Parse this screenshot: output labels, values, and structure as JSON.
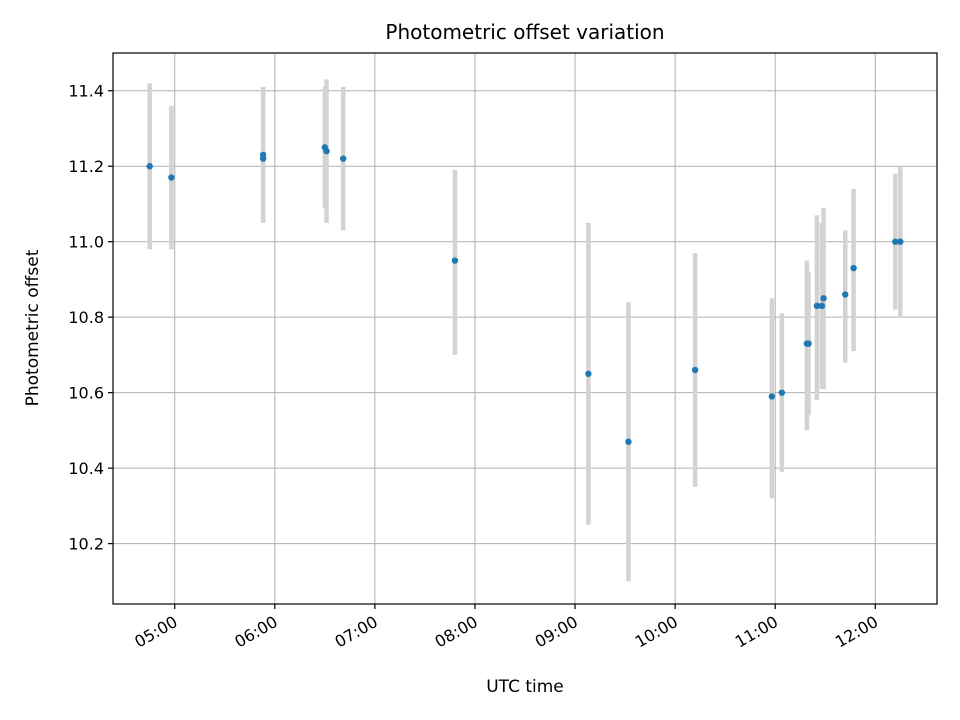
{
  "chart_data": {
    "type": "scatter",
    "title": "Photometric offset variation",
    "xlabel": "UTC time",
    "ylabel": "Photometric offset",
    "x_axis_kind": "time",
    "xlim": [
      "04:23",
      "12:37"
    ],
    "ylim": [
      10.04,
      11.5
    ],
    "grid": true,
    "x_ticks": [
      {
        "t": "05:00",
        "label": "05:00"
      },
      {
        "t": "06:00",
        "label": "06:00"
      },
      {
        "t": "07:00",
        "label": "07:00"
      },
      {
        "t": "08:00",
        "label": "08:00"
      },
      {
        "t": "09:00",
        "label": "09:00"
      },
      {
        "t": "10:00",
        "label": "10:00"
      },
      {
        "t": "11:00",
        "label": "11:00"
      },
      {
        "t": "12:00",
        "label": "12:00"
      }
    ],
    "y_ticks": [
      {
        "v": 10.2,
        "label": "10.2"
      },
      {
        "v": 10.4,
        "label": "10.4"
      },
      {
        "v": 10.6,
        "label": "10.6"
      },
      {
        "v": 10.8,
        "label": "10.8"
      },
      {
        "v": 11.0,
        "label": "11.0"
      },
      {
        "v": 11.2,
        "label": "11.2"
      },
      {
        "v": 11.4,
        "label": "11.4"
      }
    ],
    "colors": {
      "points": "#1f77b4",
      "errorbars": "#d3d3d3",
      "grid": "#b0b0b0"
    },
    "points": [
      {
        "t": "04:45",
        "y": 11.2,
        "lo": 10.98,
        "hi": 11.42
      },
      {
        "t": "04:58",
        "y": 11.17,
        "lo": 10.98,
        "hi": 11.36
      },
      {
        "t": "05:53",
        "y": 11.23,
        "lo": 11.05,
        "hi": 11.41
      },
      {
        "t": "05:53",
        "y": 11.22,
        "lo": 11.05,
        "hi": 11.4
      },
      {
        "t": "06:30",
        "y": 11.25,
        "lo": 11.09,
        "hi": 11.41
      },
      {
        "t": "06:31",
        "y": 11.24,
        "lo": 11.05,
        "hi": 11.43
      },
      {
        "t": "06:41",
        "y": 11.22,
        "lo": 11.03,
        "hi": 11.41
      },
      {
        "t": "07:48",
        "y": 10.95,
        "lo": 10.7,
        "hi": 11.19
      },
      {
        "t": "09:08",
        "y": 10.65,
        "lo": 10.25,
        "hi": 11.05
      },
      {
        "t": "09:32",
        "y": 10.47,
        "lo": 10.1,
        "hi": 10.84
      },
      {
        "t": "10:12",
        "y": 10.66,
        "lo": 10.35,
        "hi": 10.97
      },
      {
        "t": "10:58",
        "y": 10.59,
        "lo": 10.32,
        "hi": 10.85
      },
      {
        "t": "11:04",
        "y": 10.6,
        "lo": 10.39,
        "hi": 10.81
      },
      {
        "t": "11:19",
        "y": 10.73,
        "lo": 10.5,
        "hi": 10.95
      },
      {
        "t": "11:20",
        "y": 10.73,
        "lo": 10.54,
        "hi": 10.92
      },
      {
        "t": "11:25",
        "y": 10.83,
        "lo": 10.58,
        "hi": 11.07
      },
      {
        "t": "11:28",
        "y": 10.83,
        "lo": 10.61,
        "hi": 11.05
      },
      {
        "t": "11:29",
        "y": 10.85,
        "lo": 10.61,
        "hi": 11.09
      },
      {
        "t": "11:42",
        "y": 10.86,
        "lo": 10.68,
        "hi": 11.03
      },
      {
        "t": "11:47",
        "y": 10.93,
        "lo": 10.71,
        "hi": 11.14
      },
      {
        "t": "12:12",
        "y": 11.0,
        "lo": 10.82,
        "hi": 11.18
      },
      {
        "t": "12:15",
        "y": 11.0,
        "lo": 10.8,
        "hi": 11.2
      }
    ]
  }
}
